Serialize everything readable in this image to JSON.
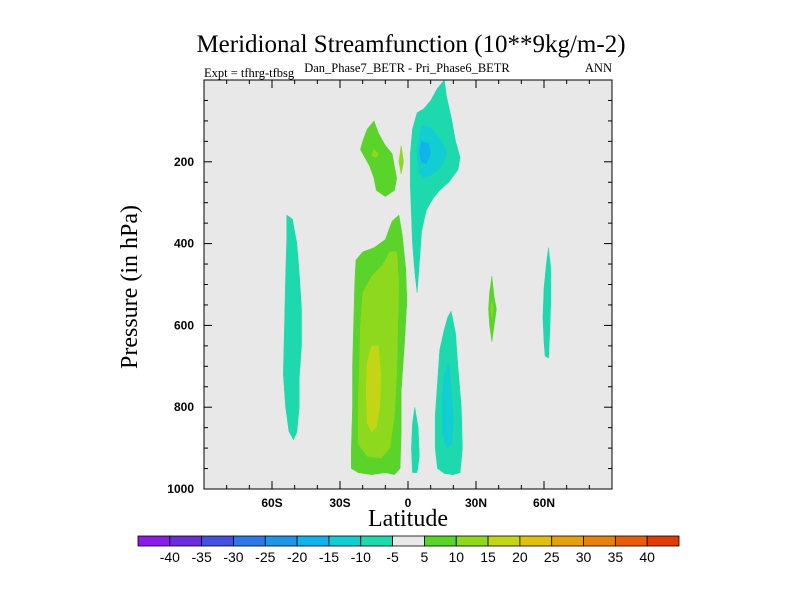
{
  "chart_data": {
    "type": "contour",
    "title": "Meridional Streamfunction (10**9kg/m-2)",
    "subtitle": "Dan_Phase7_BETR - Pri_Phase6_BETR",
    "left_label": "Expt = tfhrg-tfbsg",
    "right_label": "ANN",
    "xlabel": "Latitude",
    "ylabel": "Pressure (in hPa)",
    "xlim": [
      -90,
      90
    ],
    "ylim": [
      1000,
      0
    ],
    "x_ticks": [
      {
        "value": -60,
        "label": "60S"
      },
      {
        "value": -30,
        "label": "30S"
      },
      {
        "value": 0,
        "label": "0"
      },
      {
        "value": 30,
        "label": "30N"
      },
      {
        "value": 60,
        "label": "60N"
      }
    ],
    "y_ticks": [
      {
        "value": 200,
        "label": "200"
      },
      {
        "value": 400,
        "label": "400"
      },
      {
        "value": 600,
        "label": "600"
      },
      {
        "value": 800,
        "label": "800"
      },
      {
        "value": 1000,
        "label": "1000"
      }
    ],
    "background_color": "#e8e8e8",
    "colorbar": {
      "levels": [
        -40,
        -35,
        -30,
        -25,
        -20,
        -15,
        -10,
        -5,
        5,
        10,
        15,
        20,
        25,
        30,
        35,
        40
      ],
      "labels": [
        "-40",
        "-35",
        "-30",
        "-25",
        "-20",
        "-15",
        "-10",
        "-5",
        "5",
        "10",
        "15",
        "20",
        "25",
        "30",
        "35",
        "40"
      ],
      "colors": [
        "#8a1ee6",
        "#6a2ed8",
        "#4650e0",
        "#2f78e8",
        "#1e96e6",
        "#10b4ea",
        "#12cdd2",
        "#1ed9ae",
        "#e8e8e8",
        "#5ad42a",
        "#8ed81e",
        "#c2d616",
        "#e0be12",
        "#e4a010",
        "#e6800e",
        "#e65e0c",
        "#e03a06"
      ]
    },
    "regions": [
      {
        "name": "sh-midlat-negative",
        "value": -7,
        "color": "#1ed9ae",
        "points": [
          [
            -53.5,
            330
          ],
          [
            -51,
            340
          ],
          [
            -49,
            400
          ],
          [
            -48,
            470
          ],
          [
            -47,
            560
          ],
          [
            -47,
            650
          ],
          [
            -48,
            730
          ],
          [
            -48,
            800
          ],
          [
            -49,
            860
          ],
          [
            -50.5,
            880
          ],
          [
            -52.5,
            860
          ],
          [
            -54,
            800
          ],
          [
            -55,
            720
          ],
          [
            -54.5,
            600
          ],
          [
            -54,
            480
          ],
          [
            -53.5,
            390
          ]
        ]
      },
      {
        "name": "sh-tropics-positive-outer",
        "value": 7,
        "color": "#5ad42a",
        "points": [
          [
            -4,
            330
          ],
          [
            -2.5,
            380
          ],
          [
            -1,
            460
          ],
          [
            -0.5,
            540
          ],
          [
            -1.5,
            640
          ],
          [
            -3,
            760
          ],
          [
            -3,
            860
          ],
          [
            -3.5,
            950
          ],
          [
            -6,
            965
          ],
          [
            -10,
            960
          ],
          [
            -16,
            965
          ],
          [
            -22,
            960
          ],
          [
            -25,
            950
          ],
          [
            -25,
            900
          ],
          [
            -24.5,
            800
          ],
          [
            -24.5,
            700
          ],
          [
            -24,
            600
          ],
          [
            -23.5,
            500
          ],
          [
            -23,
            440
          ],
          [
            -20,
            420
          ],
          [
            -15,
            410
          ],
          [
            -10,
            390
          ],
          [
            -7,
            345
          ]
        ]
      },
      {
        "name": "sh-tropics-positive-mid",
        "value": 12,
        "color": "#8ed81e",
        "points": [
          [
            -5,
            420
          ],
          [
            -4,
            500
          ],
          [
            -4.5,
            600
          ],
          [
            -5,
            720
          ],
          [
            -6,
            820
          ],
          [
            -8,
            900
          ],
          [
            -12,
            925
          ],
          [
            -18,
            920
          ],
          [
            -22,
            890
          ],
          [
            -22,
            800
          ],
          [
            -21.5,
            700
          ],
          [
            -21,
            600
          ],
          [
            -20,
            520
          ],
          [
            -16,
            480
          ],
          [
            -11,
            450
          ],
          [
            -8,
            420
          ]
        ]
      },
      {
        "name": "sh-tropics-positive-core",
        "value": 17,
        "color": "#c2d616",
        "points": [
          [
            -13,
            650
          ],
          [
            -12,
            720
          ],
          [
            -12.5,
            800
          ],
          [
            -14,
            850
          ],
          [
            -16,
            860
          ],
          [
            -18,
            840
          ],
          [
            -18.5,
            760
          ],
          [
            -18,
            690
          ],
          [
            -16,
            650
          ]
        ]
      },
      {
        "name": "sh-positive-inner-a",
        "value": 12,
        "color": "#8ed81e",
        "points": [
          [
            -5,
            420
          ],
          [
            -4.5,
            460
          ],
          [
            -6,
            500
          ],
          [
            -8,
            470
          ],
          [
            -7,
            430
          ]
        ]
      },
      {
        "name": "upper-sh-positive",
        "value": 7,
        "color": "#5ad42a",
        "points": [
          [
            -15,
            100
          ],
          [
            -13,
            130
          ],
          [
            -10,
            160
          ],
          [
            -7,
            180
          ],
          [
            -6,
            210
          ],
          [
            -5,
            240
          ],
          [
            -6,
            270
          ],
          [
            -10,
            285
          ],
          [
            -14,
            270
          ],
          [
            -15,
            240
          ],
          [
            -17,
            210
          ],
          [
            -19,
            190
          ],
          [
            -21,
            170
          ],
          [
            -20,
            150
          ],
          [
            -18,
            120
          ]
        ]
      },
      {
        "name": "upper-sh-positive-core",
        "value": 12,
        "color": "#8ed81e",
        "points": [
          [
            -15,
            170
          ],
          [
            -13,
            180
          ],
          [
            -14,
            190
          ],
          [
            -16,
            185
          ]
        ]
      },
      {
        "name": "upper-sh-eq-positive",
        "value": 12,
        "color": "#8ed81e",
        "points": [
          [
            -3,
            160
          ],
          [
            -2,
            200
          ],
          [
            -3,
            230
          ],
          [
            -4,
            200
          ]
        ]
      },
      {
        "name": "nh-upper-negative-outer",
        "value": -7,
        "color": "#1ed9ae",
        "points": [
          [
            16,
            0
          ],
          [
            17,
            40
          ],
          [
            19,
            90
          ],
          [
            21,
            150
          ],
          [
            23,
            190
          ],
          [
            22,
            220
          ],
          [
            18,
            250
          ],
          [
            14,
            270
          ],
          [
            11,
            290
          ],
          [
            8,
            320
          ],
          [
            6,
            370
          ],
          [
            5,
            450
          ],
          [
            4,
            520
          ],
          [
            3,
            470
          ],
          [
            2,
            400
          ],
          [
            1.5,
            330
          ],
          [
            1,
            260
          ],
          [
            1,
            180
          ],
          [
            2,
            120
          ],
          [
            4,
            80
          ],
          [
            7,
            70
          ],
          [
            10,
            50
          ],
          [
            13,
            20
          ]
        ]
      },
      {
        "name": "nh-upper-negative-mid",
        "value": -12,
        "color": "#12cdd2",
        "points": [
          [
            6,
            110
          ],
          [
            10,
            115
          ],
          [
            15,
            150
          ],
          [
            17,
            180
          ],
          [
            15,
            210
          ],
          [
            11,
            230
          ],
          [
            7,
            240
          ],
          [
            5,
            225
          ],
          [
            4,
            180
          ],
          [
            5,
            140
          ]
        ]
      },
      {
        "name": "nh-upper-negative-core",
        "value": -17,
        "color": "#10b4ea",
        "points": [
          [
            6,
            150
          ],
          [
            9,
            155
          ],
          [
            10,
            180
          ],
          [
            8,
            205
          ],
          [
            6,
            200
          ],
          [
            5,
            175
          ]
        ]
      },
      {
        "name": "nh-lower-negative-outer",
        "value": -7,
        "color": "#1ed9ae",
        "points": [
          [
            19,
            565
          ],
          [
            21,
            620
          ],
          [
            22,
            700
          ],
          [
            23.5,
            800
          ],
          [
            24,
            900
          ],
          [
            23,
            960
          ],
          [
            20,
            965
          ],
          [
            16,
            962
          ],
          [
            13,
            950
          ],
          [
            12,
            900
          ],
          [
            12,
            820
          ],
          [
            13,
            740
          ],
          [
            14,
            660
          ],
          [
            16,
            610
          ],
          [
            17.5,
            580
          ]
        ]
      },
      {
        "name": "nh-lower-negative-core",
        "value": -12,
        "color": "#12cdd2",
        "points": [
          [
            18,
            690
          ],
          [
            19,
            750
          ],
          [
            20,
            820
          ],
          [
            19.5,
            890
          ],
          [
            17,
            900
          ],
          [
            15,
            860
          ],
          [
            15,
            780
          ],
          [
            16,
            720
          ]
        ]
      },
      {
        "name": "eq-lower-negative",
        "value": -7,
        "color": "#1ed9ae",
        "points": [
          [
            3,
            800
          ],
          [
            4.5,
            850
          ],
          [
            5,
            920
          ],
          [
            4,
            960
          ],
          [
            2,
            960
          ],
          [
            1.5,
            900
          ],
          [
            2,
            840
          ]
        ]
      },
      {
        "name": "nh-30n-positive",
        "value": 7,
        "color": "#5ad42a",
        "points": [
          [
            37,
            480
          ],
          [
            38,
            530
          ],
          [
            39,
            560
          ],
          [
            38,
            600
          ],
          [
            37,
            640
          ],
          [
            36,
            600
          ],
          [
            35.5,
            560
          ],
          [
            36,
            520
          ]
        ]
      },
      {
        "name": "nh-30n-positive-core",
        "value": 12,
        "color": "#8ed81e",
        "points": [
          [
            37,
            540
          ],
          [
            37.5,
            560
          ],
          [
            37,
            580
          ],
          [
            36.5,
            560
          ]
        ]
      },
      {
        "name": "nh-60n-negative",
        "value": -7,
        "color": "#1ed9ae",
        "points": [
          [
            62,
            410
          ],
          [
            63,
            460
          ],
          [
            63,
            540
          ],
          [
            62.5,
            620
          ],
          [
            62,
            680
          ],
          [
            60.5,
            675
          ],
          [
            60,
            640
          ],
          [
            59.5,
            580
          ],
          [
            60,
            510
          ],
          [
            61,
            450
          ]
        ]
      }
    ]
  }
}
